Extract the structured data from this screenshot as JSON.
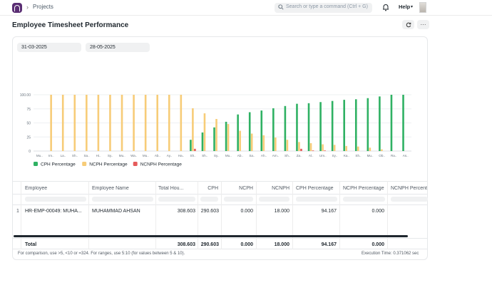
{
  "navbar": {
    "breadcrumb": "Projects",
    "search_placeholder": "Search or type a command (Ctrl + G)",
    "help_label": "Help"
  },
  "page": {
    "title": "Employee Timesheet Performance",
    "refresh_icon": "refresh-icon",
    "more_icon": "more-icon"
  },
  "filters": {
    "from_date": "31-03-2025",
    "to_date": "28-05-2025"
  },
  "chart_data": {
    "type": "bar",
    "categories": [
      "Mu..",
      "Im..",
      "La..",
      "Sh..",
      "Sa..",
      "Hi..",
      "Sy..",
      "Mu..",
      "Wa..",
      "Mu..",
      "Ab..",
      "Ay..",
      "Ha..",
      "Sh..",
      "Sh..",
      "Sy..",
      "Mu..",
      "Ab..",
      "Sa..",
      "Ah..",
      "Am..",
      "Sh..",
      "Za..",
      "Al..",
      "Um..",
      "Sy..",
      "Ka..",
      "Sh..",
      "Mu..",
      "Ob..",
      "Ra..",
      "As.."
    ],
    "ylim": [
      0,
      100
    ],
    "yticks": [
      "0",
      "25",
      "50",
      "75",
      "100.00"
    ],
    "series": [
      {
        "name": "CPH Percentage",
        "color": "#2fb163",
        "values": [
          0,
          0,
          0,
          0,
          0,
          0,
          0,
          0,
          0,
          0,
          0,
          0,
          0,
          20,
          33,
          42,
          52,
          65,
          69,
          72,
          76,
          80,
          84,
          85,
          87,
          89,
          91,
          92,
          94,
          97,
          100,
          100
        ]
      },
      {
        "name": "NCPH Percentage",
        "color": "#f7cc78",
        "values": [
          0,
          100,
          100,
          100,
          100,
          100,
          100,
          100,
          100,
          100,
          100,
          100,
          100,
          76,
          67,
          57,
          48,
          36,
          31,
          28,
          24,
          20,
          16,
          14,
          12,
          11,
          9,
          8,
          6,
          3,
          0,
          0
        ]
      },
      {
        "name": "NCNPH Percentage",
        "color": "#e55b5b",
        "values": [
          0,
          0,
          0,
          0,
          0,
          0,
          0,
          0,
          0,
          0,
          0,
          0,
          0,
          4,
          0,
          0,
          0,
          0,
          0,
          0,
          0,
          0,
          4,
          1,
          1,
          0,
          0,
          0,
          0,
          0,
          0,
          0
        ]
      }
    ],
    "grid": true,
    "legend": "bottom-left"
  },
  "table": {
    "columns": [
      "Employee",
      "Employee Name",
      "Total Hou...",
      "CPH",
      "NCPH",
      "NCNPH",
      "CPH Percentage",
      "NCPH Percentage",
      "NCNPH Percent"
    ],
    "rows": [
      {
        "num": "1",
        "employee": "HR-EMP-00049: MUHA...",
        "name": "MUHAMMAD AHSAN",
        "total": "308.603",
        "cph": "290.603",
        "ncph": "0.000",
        "ncnph": "18.000",
        "cph_pct": "94.167",
        "ncph_pct": "0.000",
        "ncnph_pct": ""
      }
    ],
    "totals": {
      "label": "Total",
      "total": "308.603",
      "cph": "290.603",
      "ncph": "0.000",
      "ncnph": "18.000",
      "cph_pct": "94.167",
      "ncph_pct": "0.000"
    }
  },
  "footer": {
    "hint": "For comparison, use >5, <10 or =324. For ranges, use 5:10 (for values between 5 & 10).",
    "execution": "Execution Time: 0.371062 sec"
  }
}
